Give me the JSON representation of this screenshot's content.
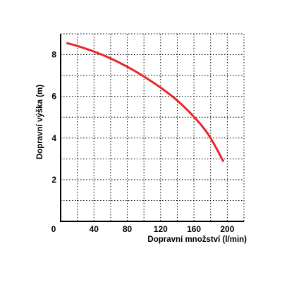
{
  "chart_data": {
    "type": "line",
    "xlabel": "Dopravní množství (l/min)",
    "ylabel": "Dopravní výška (m)",
    "xlim": [
      0,
      220
    ],
    "ylim": [
      0,
      9
    ],
    "x_ticks": [
      "0",
      "40",
      "80",
      "120",
      "160",
      "200"
    ],
    "y_ticks": [
      "2",
      "4",
      "6",
      "8"
    ],
    "grid": true,
    "grid_style": "dotted",
    "series": [
      {
        "color": "#e8262a",
        "points": [
          [
            8,
            8.55
          ],
          [
            20,
            8.42
          ],
          [
            40,
            8.15
          ],
          [
            60,
            7.82
          ],
          [
            80,
            7.42
          ],
          [
            100,
            6.95
          ],
          [
            120,
            6.42
          ],
          [
            140,
            5.8
          ],
          [
            160,
            5.02
          ],
          [
            175,
            4.3
          ],
          [
            185,
            3.65
          ],
          [
            195,
            2.9
          ]
        ]
      }
    ]
  }
}
